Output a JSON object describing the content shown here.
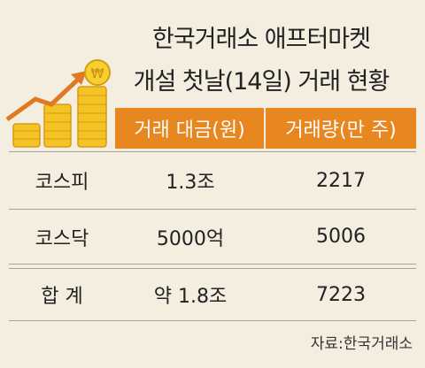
{
  "header": {
    "title_lines": [
      "한국거래소 애프터마켓",
      "개설 첫날(14일) 거래 현황"
    ]
  },
  "table": {
    "columns": [
      "거래 대금(원)",
      "거래량(만 주)"
    ],
    "rows": [
      [
        "코스피",
        "1.3조",
        "2217"
      ],
      [
        "코스닥",
        "5000억",
        "5006"
      ],
      [
        "합 계",
        "약 1.8조",
        "7223"
      ]
    ]
  },
  "source": "자료:한국거래소"
}
